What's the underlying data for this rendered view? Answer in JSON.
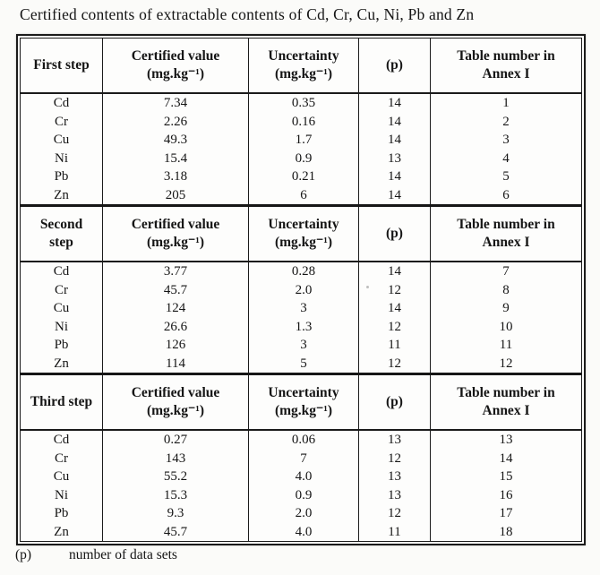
{
  "page": {
    "title": "Certified contents of extractable contents of Cd, Cr, Cu, Ni, Pb and Zn",
    "footnote_symbol": "(p)",
    "footnote_text": "number of data sets"
  },
  "table": {
    "headers": {
      "certified_value": "Certified value",
      "certified_unit": "(mg.kg⁻¹)",
      "uncertainty": "Uncertainty",
      "uncertainty_unit": "(mg.kg⁻¹)",
      "p": "(p)",
      "annex_line1": "Table number in",
      "annex_line2": "Annex I"
    },
    "sections": [
      {
        "step": "First step",
        "rows": [
          {
            "element": "Cd",
            "certified": "7.34",
            "uncertainty": "0.35",
            "p": "14",
            "annex": "1"
          },
          {
            "element": "Cr",
            "certified": "2.26",
            "uncertainty": "0.16",
            "p": "14",
            "annex": "2"
          },
          {
            "element": "Cu",
            "certified": "49.3",
            "uncertainty": "1.7",
            "p": "14",
            "annex": "3"
          },
          {
            "element": "Ni",
            "certified": "15.4",
            "uncertainty": "0.9",
            "p": "13",
            "annex": "4"
          },
          {
            "element": "Pb",
            "certified": "3.18",
            "uncertainty": "0.21",
            "p": "14",
            "annex": "5"
          },
          {
            "element": "Zn",
            "certified": "205",
            "uncertainty": "6",
            "p": "14",
            "annex": "6"
          }
        ]
      },
      {
        "step": "Second step",
        "rows": [
          {
            "element": "Cd",
            "certified": "3.77",
            "uncertainty": "0.28",
            "p": "14",
            "annex": "7"
          },
          {
            "element": "Cr",
            "certified": "45.7",
            "uncertainty": "2.0",
            "p": "12",
            "annex": "8"
          },
          {
            "element": "Cu",
            "certified": "124",
            "uncertainty": "3",
            "p": "14",
            "annex": "9"
          },
          {
            "element": "Ni",
            "certified": "26.6",
            "uncertainty": "1.3",
            "p": "12",
            "annex": "10"
          },
          {
            "element": "Pb",
            "certified": "126",
            "uncertainty": "3",
            "p": "11",
            "annex": "11"
          },
          {
            "element": "Zn",
            "certified": "114",
            "uncertainty": "5",
            "p": "12",
            "annex": "12"
          }
        ]
      },
      {
        "step": "Third step",
        "rows": [
          {
            "element": "Cd",
            "certified": "0.27",
            "uncertainty": "0.06",
            "p": "13",
            "annex": "13"
          },
          {
            "element": "Cr",
            "certified": "143",
            "uncertainty": "7",
            "p": "12",
            "annex": "14"
          },
          {
            "element": "Cu",
            "certified": "55.2",
            "uncertainty": "4.0",
            "p": "13",
            "annex": "15"
          },
          {
            "element": "Ni",
            "certified": "15.3",
            "uncertainty": "0.9",
            "p": "13",
            "annex": "16"
          },
          {
            "element": "Pb",
            "certified": "9.3",
            "uncertainty": "2.0",
            "p": "12",
            "annex": "17"
          },
          {
            "element": "Zn",
            "certified": "45.7",
            "uncertainty": "4.0",
            "p": "11",
            "annex": "18"
          }
        ]
      }
    ]
  }
}
